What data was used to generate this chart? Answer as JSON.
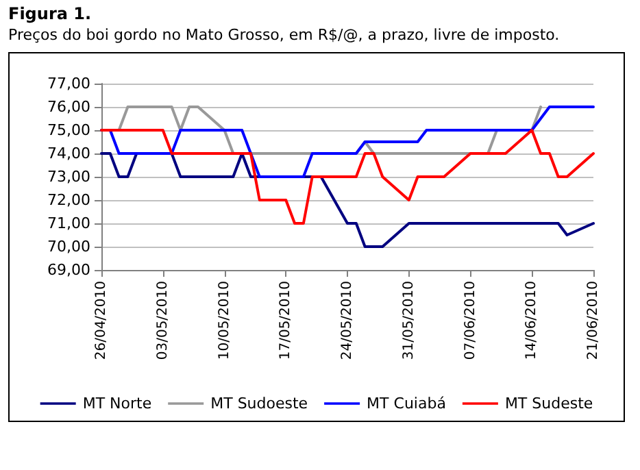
{
  "chart_data": {
    "type": "line",
    "title": "Figura 1.",
    "subtitle": "Preços do boi gordo no Mato Grosso, em R$/@, a prazo, livre de imposto.",
    "xlim": [
      "2010-04-26",
      "2010-06-21"
    ],
    "xticks": [
      {
        "value": "2010-04-26",
        "label": "26/04/2010"
      },
      {
        "value": "2010-05-03",
        "label": "03/05/2010"
      },
      {
        "value": "2010-05-10",
        "label": "10/05/2010"
      },
      {
        "value": "2010-05-17",
        "label": "17/05/2010"
      },
      {
        "value": "2010-05-24",
        "label": "24/05/2010"
      },
      {
        "value": "2010-05-31",
        "label": "31/05/2010"
      },
      {
        "value": "2010-06-07",
        "label": "07/06/2010"
      },
      {
        "value": "2010-06-14",
        "label": "14/06/2010"
      },
      {
        "value": "2010-06-21",
        "label": "21/06/2010"
      }
    ],
    "ylim": [
      69,
      77
    ],
    "yticks": [
      {
        "value": 69,
        "label": "69,00"
      },
      {
        "value": 70,
        "label": "70,00"
      },
      {
        "value": 71,
        "label": "71,00"
      },
      {
        "value": 72,
        "label": "72,00"
      },
      {
        "value": 73,
        "label": "73,00"
      },
      {
        "value": 74,
        "label": "74,00"
      },
      {
        "value": 75,
        "label": "75,00"
      },
      {
        "value": 76,
        "label": "76,00"
      },
      {
        "value": 77,
        "label": "77,00"
      }
    ],
    "grid": "y",
    "legend": "bottom",
    "marker": "none",
    "line_style": "solid",
    "series": [
      {
        "name": "MT Norte",
        "color": "#000080",
        "x": [
          "2010-04-26",
          "2010-04-27",
          "2010-04-28",
          "2010-04-29",
          "2010-04-30",
          "2010-05-04",
          "2010-05-05",
          "2010-05-11",
          "2010-05-12",
          "2010-05-13",
          "2010-05-21",
          "2010-05-24",
          "2010-05-25",
          "2010-05-26",
          "2010-05-28",
          "2010-05-31",
          "2010-06-17",
          "2010-06-18",
          "2010-06-21"
        ],
        "values": [
          74,
          74,
          73,
          73,
          74,
          74,
          73,
          73,
          74,
          73,
          73,
          71,
          71,
          70,
          70,
          71,
          71,
          70.5,
          71
        ]
      },
      {
        "name": "MT Sudoeste",
        "color": "#999999",
        "x": [
          "2010-04-26",
          "2010-04-28",
          "2010-04-29",
          "2010-05-04",
          "2010-05-05",
          "2010-05-06",
          "2010-05-07",
          "2010-05-10",
          "2010-05-11",
          "2010-05-25",
          "2010-05-26",
          "2010-05-27",
          "2010-06-09",
          "2010-06-10",
          "2010-06-14",
          "2010-06-15"
        ],
        "values": [
          75,
          75,
          76,
          76,
          75,
          76,
          76,
          75,
          74,
          74,
          74.5,
          74,
          74,
          75,
          75,
          76
        ]
      },
      {
        "name": "MT Cuiabá",
        "color": "#0000ff",
        "x": [
          "2010-04-26",
          "2010-04-27",
          "2010-04-28",
          "2010-05-04",
          "2010-05-05",
          "2010-05-12",
          "2010-05-14",
          "2010-05-19",
          "2010-05-20",
          "2010-05-25",
          "2010-05-26",
          "2010-06-01",
          "2010-06-02",
          "2010-06-14",
          "2010-06-16",
          "2010-06-21"
        ],
        "values": [
          75,
          75,
          74,
          74,
          75,
          75,
          73,
          73,
          74,
          74,
          74.5,
          74.5,
          75,
          75,
          76,
          76
        ]
      },
      {
        "name": "MT Sudeste",
        "color": "#ff0000",
        "x": [
          "2010-04-26",
          "2010-05-03",
          "2010-05-04",
          "2010-05-13",
          "2010-05-14",
          "2010-05-17",
          "2010-05-18",
          "2010-05-19",
          "2010-05-20",
          "2010-05-25",
          "2010-05-26",
          "2010-05-27",
          "2010-05-28",
          "2010-05-31",
          "2010-06-01",
          "2010-06-04",
          "2010-06-07",
          "2010-06-11",
          "2010-06-14",
          "2010-06-15",
          "2010-06-16",
          "2010-06-17",
          "2010-06-18",
          "2010-06-21"
        ],
        "values": [
          75,
          75,
          74,
          74,
          72,
          72,
          71,
          71,
          73,
          73,
          74,
          74,
          73,
          72,
          73,
          73,
          74,
          74,
          75,
          74,
          74,
          73,
          73,
          74
        ]
      }
    ]
  }
}
